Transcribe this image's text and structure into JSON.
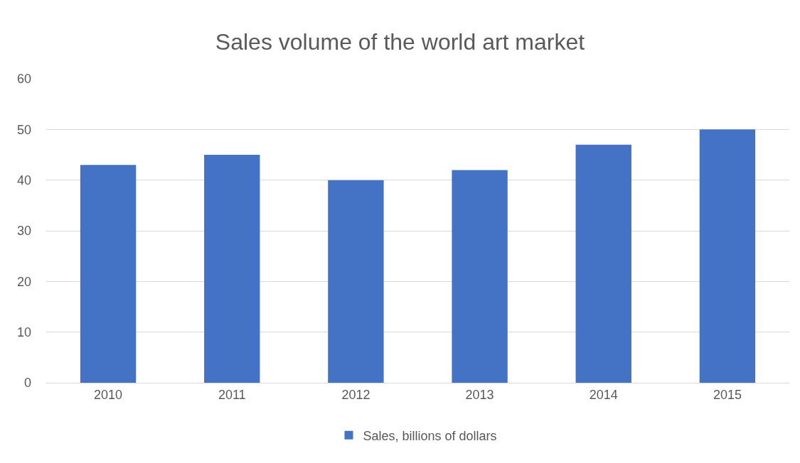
{
  "chart_data": {
    "type": "bar",
    "title": "Sales volume of the world art market",
    "categories": [
      "2010",
      "2011",
      "2012",
      "2013",
      "2014",
      "2015"
    ],
    "series": [
      {
        "name": "Sales, billions of dollars",
        "color": "#4472c4",
        "values": [
          43,
          45,
          40,
          42,
          47,
          50
        ]
      }
    ],
    "ylim": [
      0,
      60
    ],
    "yticks": [
      0,
      10,
      20,
      30,
      40,
      50,
      60
    ],
    "grid": "y",
    "legend": "bottom"
  }
}
